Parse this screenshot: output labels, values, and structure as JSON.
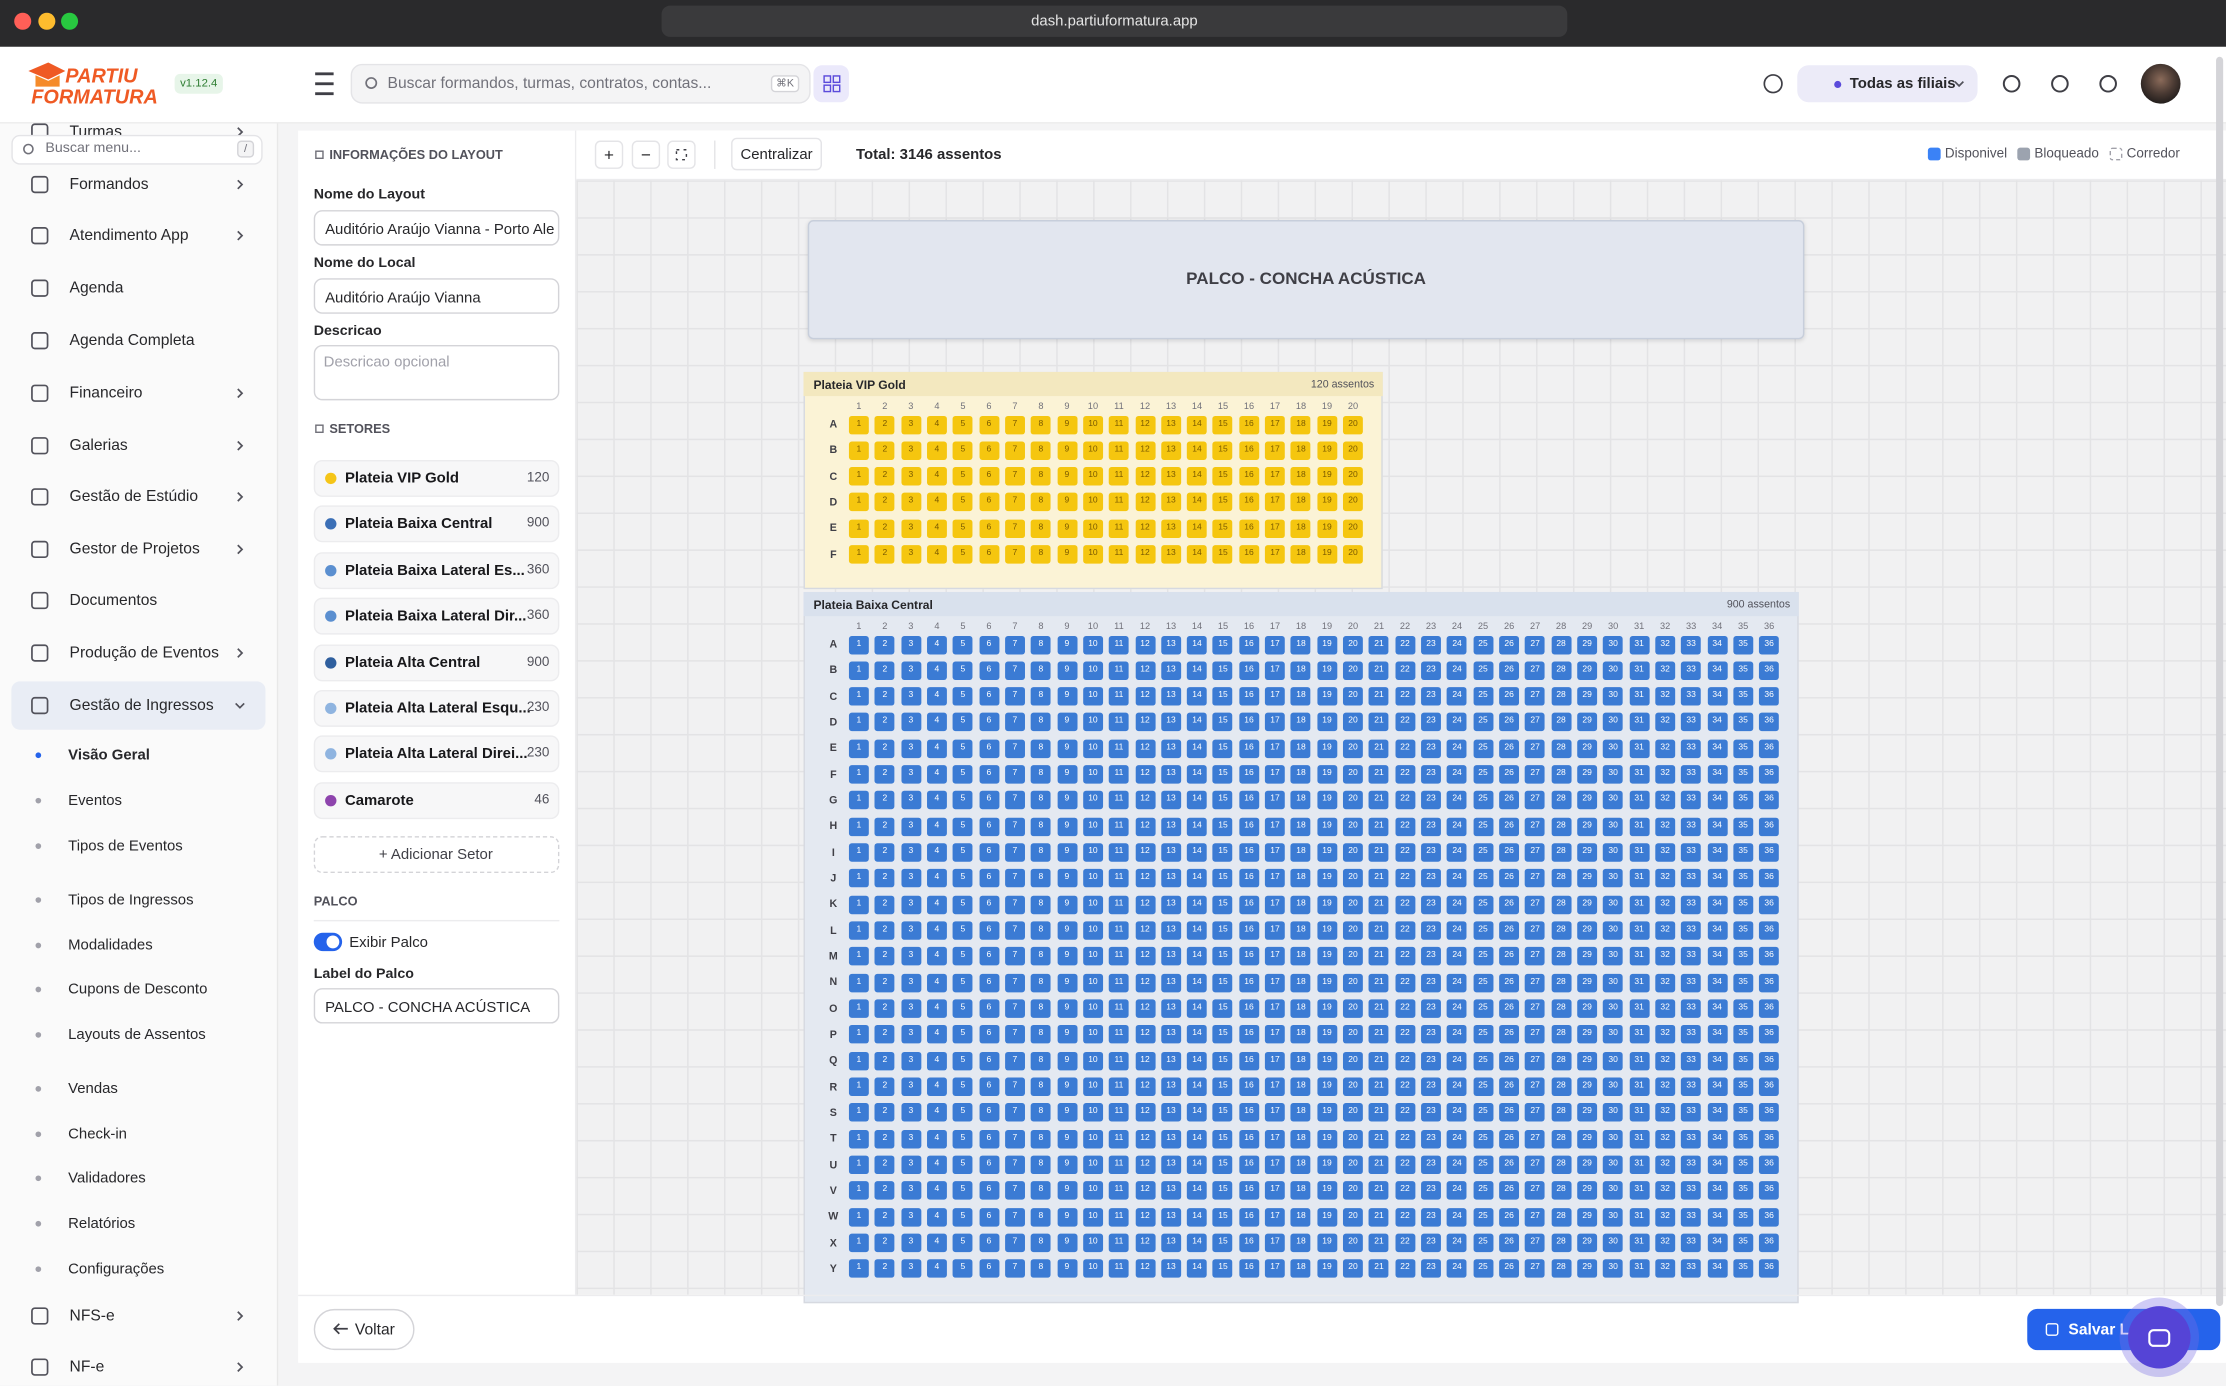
{
  "browser": {
    "url": "dash.partiuformatura.app"
  },
  "header": {
    "brand_top": "PARTIU",
    "brand_bottom": "FORMATURA",
    "version": "v1.12.4",
    "search_placeholder": "Buscar formandos, turmas, contratos, contas...",
    "search_shortcut": "⌘K",
    "branch": "Todas as filiais"
  },
  "sidebar": {
    "search_placeholder": "Buscar menu...",
    "search_shortcut": "/",
    "items": [
      {
        "label": "Turmas",
        "expandable": true
      },
      {
        "label": "Formandos",
        "expandable": true
      },
      {
        "label": "Atendimento App",
        "expandable": true
      },
      {
        "label": "Agenda",
        "expandable": false
      },
      {
        "label": "Agenda Completa",
        "expandable": false
      },
      {
        "label": "Financeiro",
        "expandable": true
      },
      {
        "label": "Galerias",
        "expandable": true
      },
      {
        "label": "Gestão de Estúdio",
        "expandable": true
      },
      {
        "label": "Gestor de Projetos",
        "expandable": true
      },
      {
        "label": "Documentos",
        "expandable": false
      },
      {
        "label": "Produção de Eventos",
        "expandable": true
      },
      {
        "label": "Gestão de Ingressos",
        "expandable": true,
        "active": true,
        "children": [
          {
            "label": "Visão Geral",
            "active": true
          },
          {
            "label": "Eventos"
          },
          {
            "label": "Tipos de Eventos"
          },
          {
            "label": "Tipos de Ingressos"
          },
          {
            "label": "Modalidades"
          },
          {
            "label": "Cupons de Desconto"
          },
          {
            "label": "Layouts de Assentos"
          },
          {
            "label": "Vendas"
          },
          {
            "label": "Check-in"
          },
          {
            "label": "Validadores"
          },
          {
            "label": "Relatórios"
          },
          {
            "label": "Configurações"
          }
        ]
      },
      {
        "label": "NFS-e",
        "expandable": true
      },
      {
        "label": "NF-e",
        "expandable": true
      }
    ]
  },
  "layout_info": {
    "title": "INFORMAÇÕES DO LAYOUT",
    "fields": [
      {
        "label": "Nome do Layout",
        "value": "Auditório Araújo Vianna - Porto Ale"
      },
      {
        "label": "Nome do Local",
        "value": "Auditório Araújo Vianna"
      }
    ],
    "description_label": "Descricao",
    "description_placeholder": "Descricao opcional",
    "sectors_title": "SETORES",
    "sectors": [
      {
        "name": "Plateia VIP Gold",
        "count": "120",
        "color": "#f5c518"
      },
      {
        "name": "Plateia Baixa Central",
        "count": "900",
        "color": "#3b6fb6"
      },
      {
        "name": "Plateia Baixa Lateral Es...",
        "count": "360",
        "color": "#5b8fd0"
      },
      {
        "name": "Plateia Baixa Lateral Dir...",
        "count": "360",
        "color": "#5b8fd0"
      },
      {
        "name": "Plateia Alta Central",
        "count": "900",
        "color": "#2f5f9e"
      },
      {
        "name": "Plateia Alta Lateral Esqu...",
        "count": "230",
        "color": "#8fb4e0"
      },
      {
        "name": "Plateia Alta Lateral Direi...",
        "count": "230",
        "color": "#8fb4e0"
      },
      {
        "name": "Camarote",
        "count": "46",
        "color": "#8e44ad"
      }
    ],
    "add_sector": "+ Adicionar Setor",
    "stage_title": "PALCO",
    "show_stage_label": "Exibir Palco",
    "show_stage": true,
    "stage_label_label": "Label do Palco",
    "stage_label_value": "PALCO - CONCHA ACÚSTICA"
  },
  "toolbar": {
    "zoom_in": "+",
    "zoom_out": "−",
    "center": "Centralizar",
    "total": "Total: 3146 assentos",
    "legend": [
      {
        "label": "Disponivel",
        "color": "#3b82f6"
      },
      {
        "label": "Bloqueado",
        "color": "#9ca3af"
      },
      {
        "label": "Corredor",
        "color": "dashed"
      }
    ]
  },
  "seat_map": {
    "stage": "PALCO - CONCHA ACÚSTICA",
    "sections": [
      {
        "name": "Plateia VIP Gold",
        "seat_count": "120 assentos",
        "seat_color": "#f5c60f",
        "text_color": "#7a5a00",
        "bg": "#fbf3d6",
        "header_bg": "#f3e8bf",
        "rows": [
          "A",
          "B",
          "C",
          "D",
          "E",
          "F"
        ],
        "columns": [
          1,
          2,
          3,
          4,
          5,
          6,
          7,
          8,
          9,
          10,
          11,
          12,
          13,
          14,
          15,
          16,
          17,
          18,
          19,
          20
        ]
      },
      {
        "name": "Plateia Baixa Central",
        "seat_count": "900 assentos",
        "seat_color": "#3b7bd4",
        "text_color": "#ffffff",
        "bg": "#e4e9f1",
        "header_bg": "#d9e1ed",
        "rows": [
          "A",
          "B",
          "C",
          "D",
          "E",
          "F",
          "G",
          "H",
          "I",
          "J",
          "K",
          "L",
          "M",
          "N",
          "O",
          "P",
          "Q",
          "R",
          "S",
          "T",
          "U",
          "V",
          "W",
          "X",
          "Y"
        ],
        "columns": [
          1,
          2,
          3,
          4,
          5,
          6,
          7,
          8,
          9,
          10,
          11,
          12,
          13,
          14,
          15,
          16,
          17,
          18,
          19,
          20,
          21,
          22,
          23,
          24,
          25,
          26,
          27,
          28,
          29,
          30,
          31,
          32,
          33,
          34,
          35,
          36
        ]
      }
    ]
  },
  "footer": {
    "back": "Voltar",
    "save": "Salvar Layout"
  }
}
